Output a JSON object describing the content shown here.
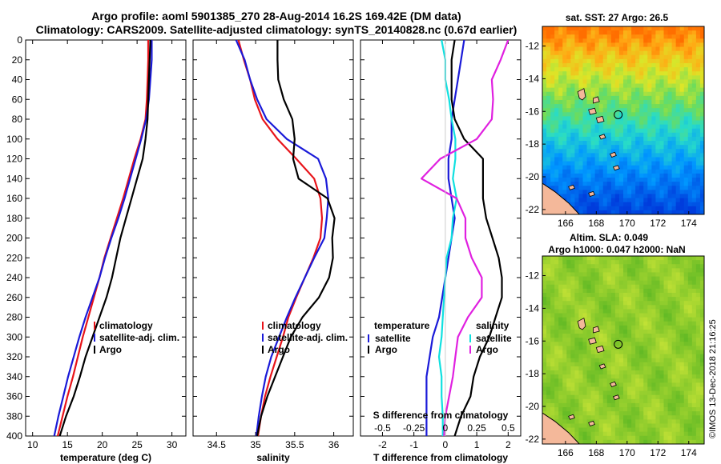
{
  "title": {
    "line1": "Argo profile: aoml 5901385_270 28-Aug-2014 16.2S 169.42E (DM data)",
    "line2": "Climatology: CARS2009. Satellite-adjusted climatology: synTS_20140828.nc (0.67d earlier)"
  },
  "colors": {
    "climatology": "#e8141a",
    "satellite": "#1a1ad8",
    "argo": "#000000",
    "sal_diff": "#e020e0",
    "sat_sal": "#10e0e0"
  },
  "chart_data": [
    {
      "type": "line",
      "name": "temperature",
      "xlabel": "temperature (deg C)",
      "ylabel": "",
      "xlim": [
        9,
        32
      ],
      "ylim": [
        0,
        400
      ],
      "xticks": [
        "10",
        "15",
        "20",
        "25",
        "30"
      ],
      "xtick_values": [
        10,
        15,
        20,
        25,
        30
      ],
      "yticks": [
        "0",
        "20",
        "40",
        "60",
        "80",
        "100",
        "120",
        "140",
        "160",
        "180",
        "200",
        "220",
        "240",
        "260",
        "280",
        "300",
        "320",
        "340",
        "360",
        "380",
        "400"
      ],
      "ytick_values": [
        0,
        20,
        40,
        60,
        80,
        100,
        120,
        140,
        160,
        180,
        200,
        220,
        240,
        260,
        280,
        300,
        320,
        340,
        360,
        380,
        400
      ],
      "legend": [
        "climatology",
        "satellite-adj. clim.",
        "Argo"
      ],
      "series": [
        {
          "name": "climatology",
          "color": "#e8141a",
          "depth": [
            0,
            20,
            40,
            60,
            80,
            100,
            120,
            140,
            160,
            180,
            200,
            220,
            240,
            260,
            280,
            300,
            320,
            340,
            360,
            380,
            400
          ],
          "values": [
            26.6,
            26.6,
            26.5,
            26.4,
            26.2,
            25.5,
            24.6,
            23.8,
            23.0,
            22.1,
            21.2,
            20.3,
            19.6,
            18.8,
            18.0,
            17.2,
            16.5,
            15.8,
            15.0,
            14.3,
            13.6
          ]
        },
        {
          "name": "satellite-adj. clim.",
          "color": "#1a1ad8",
          "depth": [
            0,
            20,
            40,
            60,
            80,
            100,
            120,
            140,
            160,
            180,
            200,
            220,
            240,
            260,
            280,
            300,
            320,
            340,
            360,
            380,
            400
          ],
          "values": [
            27.1,
            27.1,
            26.9,
            26.7,
            26.3,
            25.6,
            24.8,
            24.0,
            23.2,
            22.3,
            21.3,
            20.4,
            19.6,
            18.6,
            17.6,
            16.7,
            15.9,
            15.1,
            14.4,
            13.7,
            13.1
          ]
        },
        {
          "name": "Argo",
          "color": "#000000",
          "depth": [
            0,
            20,
            40,
            60,
            80,
            100,
            120,
            140,
            160,
            180,
            200,
            220,
            240,
            260,
            280,
            300,
            320,
            340,
            360,
            380,
            400
          ],
          "values": [
            26.9,
            26.8,
            26.7,
            26.6,
            26.5,
            26.2,
            25.8,
            25.0,
            24.2,
            23.4,
            22.6,
            22.0,
            21.4,
            20.6,
            19.6,
            18.6,
            17.6,
            16.8,
            15.9,
            14.8,
            13.9
          ]
        }
      ]
    },
    {
      "type": "line",
      "name": "salinity",
      "xlabel": "salinity",
      "xlim": [
        34.2,
        36.25
      ],
      "ylim": [
        0,
        400
      ],
      "xticks": [
        "34.5",
        "35",
        "35.5",
        "36"
      ],
      "xtick_values": [
        34.5,
        35,
        35.5,
        36
      ],
      "legend": [
        "climatology",
        "satellite-adj. clim.",
        "Argo"
      ],
      "series": [
        {
          "name": "climatology",
          "color": "#e8141a",
          "depth": [
            0,
            20,
            40,
            60,
            80,
            100,
            120,
            140,
            160,
            180,
            200,
            220,
            240,
            260,
            280,
            300,
            320,
            340,
            360,
            380,
            400
          ],
          "values": [
            34.78,
            34.85,
            34.93,
            34.99,
            35.09,
            35.28,
            35.52,
            35.75,
            35.83,
            35.85,
            35.83,
            35.74,
            35.63,
            35.52,
            35.42,
            35.35,
            35.27,
            35.19,
            35.12,
            35.07,
            35.03
          ]
        },
        {
          "name": "satellite-adj. clim.",
          "color": "#1a1ad8",
          "depth": [
            0,
            20,
            40,
            60,
            80,
            100,
            120,
            140,
            160,
            180,
            200,
            220,
            240,
            260,
            280,
            300,
            320,
            340,
            360,
            380,
            400
          ],
          "values": [
            34.75,
            34.86,
            34.93,
            35.02,
            35.14,
            35.4,
            35.8,
            35.9,
            35.93,
            35.91,
            35.88,
            35.75,
            35.63,
            35.51,
            35.4,
            35.3,
            35.2,
            35.13,
            35.08,
            35.04,
            35.01
          ]
        },
        {
          "name": "Argo",
          "color": "#000000",
          "depth": [
            0,
            20,
            40,
            60,
            80,
            100,
            120,
            140,
            160,
            180,
            200,
            220,
            240,
            260,
            280,
            300,
            320,
            340,
            360,
            380,
            400
          ],
          "values": [
            35.28,
            35.28,
            35.29,
            35.36,
            35.47,
            35.5,
            35.48,
            35.55,
            35.92,
            36.01,
            35.98,
            35.99,
            35.94,
            35.81,
            35.6,
            35.45,
            35.35,
            35.25,
            35.15,
            35.07,
            35.02
          ]
        }
      ]
    },
    {
      "type": "line",
      "name": "difference",
      "xlabel": "T difference from climatology",
      "xlabel2": "S difference from climatology",
      "xlim": [
        -2.7,
        2.4
      ],
      "ylim": [
        0,
        400
      ],
      "xticks": [
        "-2",
        "-1",
        "0",
        "1",
        "2"
      ],
      "xtick_values": [
        -2,
        -1,
        0,
        1,
        2
      ],
      "xticks2": [
        "-0.5",
        "-0.25",
        "0",
        "0.25",
        "0.5"
      ],
      "xtick2_values": [
        -0.5,
        -0.25,
        0,
        0.25,
        0.5
      ],
      "legend_temperature_title": "temperature",
      "legend_salinity_title": "salinity",
      "legend_temperature": [
        "satellite",
        "Argo"
      ],
      "legend_salinity": [
        "satellite",
        "Argo"
      ],
      "series": [
        {
          "name": "T satellite",
          "color": "#1a1ad8",
          "depth": [
            0,
            20,
            40,
            60,
            80,
            100,
            120,
            140,
            160,
            180,
            200,
            220,
            240,
            260,
            280,
            300,
            320,
            340,
            360,
            380,
            400
          ],
          "values": [
            0.6,
            0.5,
            0.4,
            0.3,
            0.2,
            0.2,
            0.1,
            0.1,
            0.2,
            0.3,
            0.2,
            0.1,
            0.0,
            -0.1,
            -0.2,
            -0.4,
            -0.5,
            -0.6,
            -0.6,
            -0.6,
            -0.6
          ]
        },
        {
          "name": "T Argo",
          "color": "#000000",
          "depth": [
            0,
            20,
            40,
            60,
            80,
            100,
            120,
            140,
            160,
            180,
            200,
            220,
            240,
            260,
            280,
            300,
            320,
            340,
            360,
            380,
            400
          ],
          "values": [
            0.3,
            0.2,
            0.2,
            0.2,
            0.3,
            0.6,
            1.2,
            1.2,
            1.2,
            1.3,
            1.5,
            1.7,
            1.8,
            1.8,
            1.6,
            1.4,
            1.1,
            0.9,
            0.8,
            0.5,
            0.3
          ]
        },
        {
          "name": "S satellite",
          "color": "#10e0e0",
          "depth": [
            0,
            20,
            40,
            60,
            80,
            100,
            120,
            140,
            160,
            180,
            200,
            220,
            240,
            260,
            280,
            300,
            320,
            340,
            360,
            380,
            400
          ],
          "values": [
            -0.03,
            0.0,
            0.0,
            0.03,
            0.05,
            0.08,
            0.08,
            0.06,
            0.09,
            0.06,
            0.05,
            0.01,
            0.0,
            -0.01,
            -0.02,
            -0.03,
            -0.05,
            -0.03,
            -0.03,
            -0.02,
            -0.02
          ]
        },
        {
          "name": "S Argo",
          "color": "#e020e0",
          "depth": [
            0,
            20,
            40,
            60,
            80,
            100,
            120,
            140,
            160,
            180,
            200,
            220,
            240,
            260,
            280,
            300,
            320,
            340,
            360,
            380,
            400
          ],
          "values": [
            0.5,
            0.44,
            0.37,
            0.38,
            0.37,
            0.25,
            -0.04,
            -0.19,
            0.09,
            0.16,
            0.16,
            0.21,
            0.29,
            0.29,
            0.18,
            0.1,
            0.08,
            0.06,
            0.03,
            0.0,
            -0.01
          ]
        }
      ]
    },
    {
      "type": "heatmap",
      "name": "sst_map",
      "title": "sat. SST: 27 Argo: 26.5",
      "xticks": [
        "166",
        "168",
        "170",
        "172",
        "174"
      ],
      "xtick_values": [
        166,
        168,
        170,
        172,
        174
      ],
      "yticks": [
        "-12",
        "-14",
        "-16",
        "-18",
        "-20",
        "-22"
      ],
      "ytick_values": [
        -12,
        -14,
        -16,
        -18,
        -20,
        -22
      ],
      "xlim": [
        164.5,
        175
      ],
      "ylim": [
        -22.3,
        -10.8
      ],
      "argo_position": [
        169.42,
        -16.2
      ]
    },
    {
      "type": "heatmap",
      "name": "sla_map",
      "title": "Altim. SLA: 0.049",
      "subtitle": "Argo h1000: 0.047 h2000: NaN",
      "xticks": [
        "166",
        "168",
        "170",
        "172",
        "174"
      ],
      "xtick_values": [
        166,
        168,
        170,
        172,
        174
      ],
      "yticks": [
        "-12",
        "-14",
        "-16",
        "-18",
        "-20",
        "-22"
      ],
      "ytick_values": [
        -12,
        -14,
        -16,
        -18,
        -20,
        -22
      ],
      "xlim": [
        164.5,
        175
      ],
      "ylim": [
        -22.3,
        -10.8
      ],
      "argo_position": [
        169.42,
        -16.2
      ]
    }
  ],
  "watermark": "©IMOS 13-Dec-2018 21:16:25"
}
